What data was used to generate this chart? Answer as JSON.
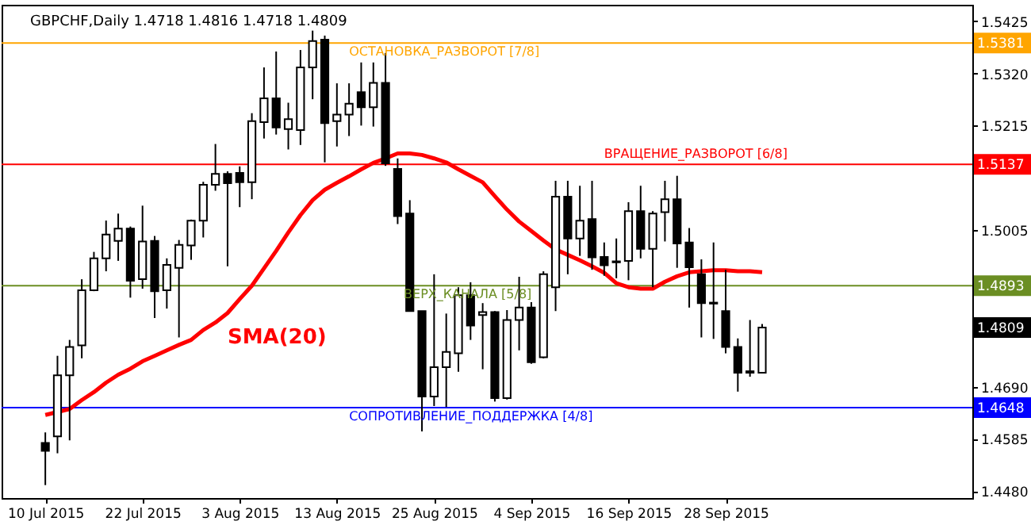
{
  "chart_data": {
    "type": "candlestick",
    "title": "GBPCHF,Daily  1.4718 1.4816 1.4718 1.4809",
    "categories": [
      "10 Jul 2015",
      null,
      null,
      null,
      null,
      null,
      null,
      null,
      "22 Jul 2015",
      null,
      null,
      null,
      null,
      null,
      null,
      null,
      "3 Aug 2015",
      null,
      null,
      null,
      null,
      null,
      null,
      null,
      "13 Aug 2015",
      null,
      null,
      null,
      null,
      null,
      null,
      null,
      "25 Aug 2015",
      null,
      null,
      null,
      null,
      null,
      null,
      null,
      "4 Sep 2015",
      null,
      null,
      null,
      null,
      null,
      null,
      null,
      "16 Sep 2015",
      null,
      null,
      null,
      null,
      null,
      null,
      null,
      "28 Sep 2015",
      null,
      null,
      null
    ],
    "ohlc": [
      [
        1.4577,
        1.4598,
        1.4492,
        1.4561
      ],
      [
        1.459,
        1.4752,
        1.4556,
        1.4713
      ],
      [
        1.4713,
        1.4784,
        1.4582,
        1.477
      ],
      [
        1.4773,
        1.4906,
        1.4747,
        1.4884
      ],
      [
        1.4884,
        1.4961,
        1.4882,
        1.4948
      ],
      [
        1.4948,
        1.5024,
        1.4922,
        1.4996
      ],
      [
        1.4983,
        1.5038,
        1.4943,
        1.5008
      ],
      [
        1.5008,
        1.5012,
        1.4869,
        1.4903
      ],
      [
        1.4906,
        1.5054,
        1.4887,
        1.4982
      ],
      [
        1.4983,
        1.4993,
        1.4828,
        1.4882
      ],
      [
        1.4884,
        1.4948,
        1.4847,
        1.4935
      ],
      [
        1.4929,
        1.4985,
        1.4789,
        1.4975
      ],
      [
        1.4974,
        1.5026,
        1.4945,
        1.5024
      ],
      [
        1.5024,
        1.5102,
        1.499,
        1.5096
      ],
      [
        1.5096,
        1.5178,
        1.5084,
        1.5118
      ],
      [
        1.5118,
        1.5123,
        1.4932,
        1.5099
      ],
      [
        1.512,
        1.5133,
        1.5051,
        1.5101
      ],
      [
        1.5101,
        1.524,
        1.5067,
        1.5224
      ],
      [
        1.5222,
        1.5332,
        1.5189,
        1.527
      ],
      [
        1.527,
        1.5364,
        1.5197,
        1.5211
      ],
      [
        1.5208,
        1.5261,
        1.5167,
        1.5228
      ],
      [
        1.5206,
        1.5367,
        1.5176,
        1.5332
      ],
      [
        1.5332,
        1.5406,
        1.5268,
        1.5385
      ],
      [
        1.5388,
        1.5396,
        1.5141,
        1.522
      ],
      [
        1.5224,
        1.53,
        1.5173,
        1.5237
      ],
      [
        1.5237,
        1.53,
        1.5194,
        1.5259
      ],
      [
        1.5282,
        1.5342,
        1.5215,
        1.5252
      ],
      [
        1.5252,
        1.5342,
        1.5213,
        1.5301
      ],
      [
        1.5301,
        1.5361,
        1.5134,
        1.5139
      ],
      [
        1.5128,
        1.5149,
        1.5017,
        1.5033
      ],
      [
        1.5038,
        1.5065,
        1.4842,
        1.4842
      ],
      [
        1.4842,
        1.4842,
        1.46,
        1.467
      ],
      [
        1.467,
        1.4916,
        1.4651,
        1.4729
      ],
      [
        1.4729,
        1.4837,
        1.4649,
        1.476
      ],
      [
        1.4757,
        1.489,
        1.472,
        1.4874
      ],
      [
        1.4874,
        1.49,
        1.4784,
        1.4813
      ],
      [
        1.4834,
        1.4858,
        1.4725,
        1.484
      ],
      [
        1.484,
        1.4842,
        1.466,
        1.4667
      ],
      [
        1.4667,
        1.4844,
        1.4664,
        1.4824
      ],
      [
        1.4824,
        1.4911,
        1.4763,
        1.4849
      ],
      [
        1.4849,
        1.486,
        1.4736,
        1.4739
      ],
      [
        1.4749,
        1.4922,
        1.4747,
        1.4916
      ],
      [
        1.489,
        1.5104,
        1.4842,
        1.5072
      ],
      [
        1.5072,
        1.5104,
        1.4916,
        1.4988
      ],
      [
        1.4988,
        1.5094,
        1.4953,
        1.5024
      ],
      [
        1.5027,
        1.5104,
        1.4925,
        1.495
      ],
      [
        1.4951,
        1.498,
        1.4913,
        1.4934
      ],
      [
        1.4942,
        1.4988,
        1.4908,
        1.494
      ],
      [
        1.4943,
        1.5061,
        1.4904,
        1.5043
      ],
      [
        1.5043,
        1.5094,
        1.4948,
        1.4967
      ],
      [
        1.4967,
        1.5043,
        1.489,
        1.5038
      ],
      [
        1.5041,
        1.5104,
        1.4982,
        1.5067
      ],
      [
        1.5067,
        1.5114,
        1.4929,
        1.4978
      ],
      [
        1.498,
        1.5009,
        1.4849,
        1.493
      ],
      [
        1.4916,
        1.4946,
        1.4789,
        1.4858
      ],
      [
        1.4859,
        1.498,
        1.4786,
        1.4857
      ],
      [
        1.4842,
        1.4925,
        1.4757,
        1.477
      ],
      [
        1.477,
        1.4787,
        1.468,
        1.4718
      ],
      [
        1.4721,
        1.4824,
        1.471,
        1.4718
      ],
      [
        1.4718,
        1.4816,
        1.4718,
        1.4809
      ]
    ],
    "series": [
      {
        "name": "SMA(20)",
        "type": "line",
        "color": "#ff0000",
        "values": [
          1.4633,
          1.4639,
          1.4645,
          1.4663,
          1.4679,
          1.4698,
          1.4714,
          1.4726,
          1.4741,
          1.4752,
          1.4763,
          1.4774,
          1.4784,
          1.4804,
          1.4819,
          1.4838,
          1.4866,
          1.4893,
          1.4928,
          1.4963,
          1.5,
          1.5035,
          1.5065,
          1.5086,
          1.51,
          1.5113,
          1.5127,
          1.514,
          1.5149,
          1.5159,
          1.5159,
          1.5156,
          1.5149,
          1.5141,
          1.5127,
          1.5114,
          1.5101,
          1.5073,
          1.5046,
          1.5022,
          1.5003,
          1.4984,
          1.4966,
          1.4955,
          1.4944,
          1.4932,
          1.4919,
          1.4898,
          1.489,
          1.4887,
          1.4887,
          1.4901,
          1.4912,
          1.492,
          1.4922,
          1.4924,
          1.4924,
          1.4922,
          1.4922,
          1.492
        ]
      }
    ],
    "ylim": [
      1.4466,
      1.5458
    ],
    "yticks": [
      1.5425,
      {
        "value": 1.532,
        "label": "1.5320"
      },
      1.5215,
      1.5005,
      {
        "value": 1.469,
        "label": "1.4690"
      },
      1.4585,
      {
        "value": 1.448,
        "label": "1.4480"
      }
    ],
    "ref_lines": [
      {
        "axis": "y",
        "value": 1.5381,
        "label": "ОСТАНОВКА_РАЗВОРОТ [7/8]",
        "color": "#ffa500"
      },
      {
        "axis": "y",
        "value": 1.5137,
        "label": "ВРАЩЕНИЕ_РАЗВОРОТ [6/8]",
        "color": "#ff0000"
      },
      {
        "axis": "y",
        "value": 1.4893,
        "label": "ВЕРХ_КАНАЛА [5/8]",
        "color": "#6b8e23"
      },
      {
        "axis": "y",
        "value": 1.4648,
        "label": "СОПРОТИВЛЕНИЕ_ПОДДЕРЖКА [4/8]",
        "color": "#0000ff"
      }
    ],
    "annotations": [
      "1.5381",
      "1.5137",
      "1.4893",
      "1.4648",
      "1.4809"
    ],
    "grid": false
  }
}
